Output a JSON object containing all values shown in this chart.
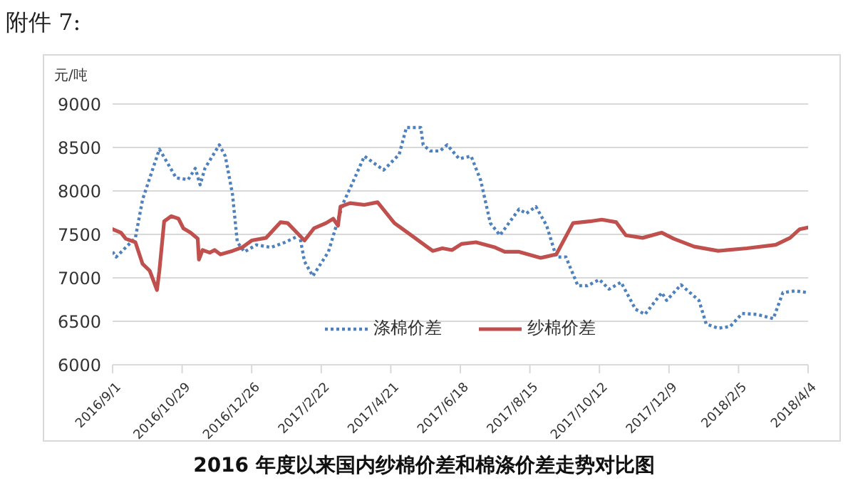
{
  "chart_data": {
    "type": "line",
    "title": "2016 年度以来国内纱棉价差和棉涤价差走势对比图",
    "ylabel": "元/吨",
    "annotations": [
      "附件 7:"
    ],
    "xlim": [
      "2016-09-01",
      "2018-04-04"
    ],
    "xticks": [
      {
        "value": "2016-09-01",
        "label": "2016/9/1"
      },
      {
        "value": "2016-10-29",
        "label": "2016/10/29"
      },
      {
        "value": "2016-12-26",
        "label": "2016/12/26"
      },
      {
        "value": "2017-02-22",
        "label": "2017/2/22"
      },
      {
        "value": "2017-04-21",
        "label": "2017/4/21"
      },
      {
        "value": "2017-06-18",
        "label": "2017/6/18"
      },
      {
        "value": "2017-08-15",
        "label": "2017/8/15"
      },
      {
        "value": "2017-10-12",
        "label": "2017/10/12"
      },
      {
        "value": "2017-12-09",
        "label": "2017/12/9"
      },
      {
        "value": "2018-02-05",
        "label": "2018/2/5"
      },
      {
        "value": "2018-04-04",
        "label": "2018/4/4"
      }
    ],
    "ylim": [
      6000,
      9000
    ],
    "yticks": [
      6000,
      6500,
      7000,
      7500,
      8000,
      8500,
      9000
    ],
    "grid": "y",
    "legend": "bottom",
    "marker": "none",
    "series": [
      {
        "name": "涤棉价差",
        "color": "#4f81bd",
        "line_style": "dotted",
        "x": [
          "2016-09-01",
          "2016-09-04",
          "2016-09-20",
          "2016-09-26",
          "2016-10-10",
          "2016-10-16",
          "2016-10-24",
          "2016-11-03",
          "2016-11-09",
          "2016-11-13",
          "2016-11-17",
          "2016-11-29",
          "2016-12-04",
          "2016-12-10",
          "2016-12-14",
          "2016-12-20",
          "2016-12-30",
          "2017-01-11",
          "2017-01-23",
          "2017-02-04",
          "2017-02-08",
          "2017-02-15",
          "2017-02-28",
          "2017-03-12",
          "2017-03-20",
          "2017-03-30",
          "2017-04-15",
          "2017-04-28",
          "2017-05-04",
          "2017-05-16",
          "2017-05-18",
          "2017-05-24",
          "2017-06-01",
          "2017-06-07",
          "2017-06-17",
          "2017-06-27",
          "2017-07-05",
          "2017-07-13",
          "2017-07-21",
          "2017-08-06",
          "2017-08-12",
          "2017-08-20",
          "2017-08-29",
          "2017-09-06",
          "2017-09-14",
          "2017-09-24",
          "2017-10-02",
          "2017-10-12",
          "2017-10-20",
          "2017-10-30",
          "2017-11-11",
          "2017-11-19",
          "2017-12-03",
          "2017-12-07",
          "2017-12-19",
          "2018-01-03",
          "2018-01-09",
          "2018-01-19",
          "2018-01-29",
          "2018-02-08",
          "2018-02-20",
          "2018-03-06",
          "2018-03-14",
          "2018-03-24",
          "2018-04-04"
        ],
        "values": [
          7300,
          7240,
          7460,
          7900,
          8480,
          8340,
          8150,
          8130,
          8260,
          8070,
          8260,
          8530,
          8400,
          7960,
          7410,
          7300,
          7380,
          7350,
          7410,
          7490,
          7190,
          7020,
          7300,
          7850,
          8090,
          8400,
          8240,
          8420,
          8730,
          8730,
          8530,
          8460,
          8460,
          8530,
          8370,
          8400,
          8120,
          7630,
          7490,
          7790,
          7740,
          7820,
          7600,
          7240,
          7240,
          6910,
          6910,
          6980,
          6870,
          6950,
          6640,
          6580,
          6830,
          6740,
          6920,
          6740,
          6470,
          6420,
          6440,
          6590,
          6580,
          6530,
          6830,
          6850,
          6830
        ]
      },
      {
        "name": "纱棉价差",
        "color": "#c0504d",
        "line_style": "solid",
        "x": [
          "2016-09-01",
          "2016-09-08",
          "2016-09-12",
          "2016-09-20",
          "2016-09-26",
          "2016-10-02",
          "2016-10-08",
          "2016-10-10",
          "2016-10-14",
          "2016-10-20",
          "2016-10-26",
          "2016-10-30",
          "2016-11-05",
          "2016-11-11",
          "2016-11-12",
          "2016-11-15",
          "2016-11-21",
          "2016-11-25",
          "2016-11-30",
          "2016-12-10",
          "2016-12-18",
          "2016-12-26",
          "2017-01-07",
          "2017-01-19",
          "2017-01-25",
          "2017-02-08",
          "2017-02-16",
          "2017-02-26",
          "2017-03-04",
          "2017-03-08",
          "2017-03-10",
          "2017-03-18",
          "2017-03-30",
          "2017-04-10",
          "2017-04-24",
          "2017-05-08",
          "2017-05-22",
          "2017-05-26",
          "2017-06-03",
          "2017-06-11",
          "2017-06-19",
          "2017-07-01",
          "2017-07-17",
          "2017-07-25",
          "2017-08-06",
          "2017-08-24",
          "2017-09-06",
          "2017-09-20",
          "2017-10-04",
          "2017-10-14",
          "2017-10-26",
          "2017-11-03",
          "2017-11-17",
          "2017-12-03",
          "2017-12-13",
          "2017-12-30",
          "2018-01-19",
          "2018-02-12",
          "2018-03-08",
          "2018-03-20",
          "2018-03-28",
          "2018-04-04"
        ],
        "values": [
          7560,
          7520,
          7450,
          7410,
          7160,
          7080,
          6860,
          7080,
          7650,
          7710,
          7680,
          7570,
          7520,
          7450,
          7210,
          7320,
          7290,
          7320,
          7270,
          7310,
          7350,
          7430,
          7460,
          7640,
          7630,
          7430,
          7570,
          7630,
          7680,
          7600,
          7820,
          7860,
          7840,
          7870,
          7630,
          7490,
          7350,
          7310,
          7340,
          7320,
          7390,
          7410,
          7350,
          7300,
          7300,
          7230,
          7270,
          7630,
          7650,
          7670,
          7640,
          7490,
          7460,
          7520,
          7450,
          7360,
          7310,
          7340,
          7380,
          7460,
          7560,
          7580
        ]
      }
    ]
  }
}
